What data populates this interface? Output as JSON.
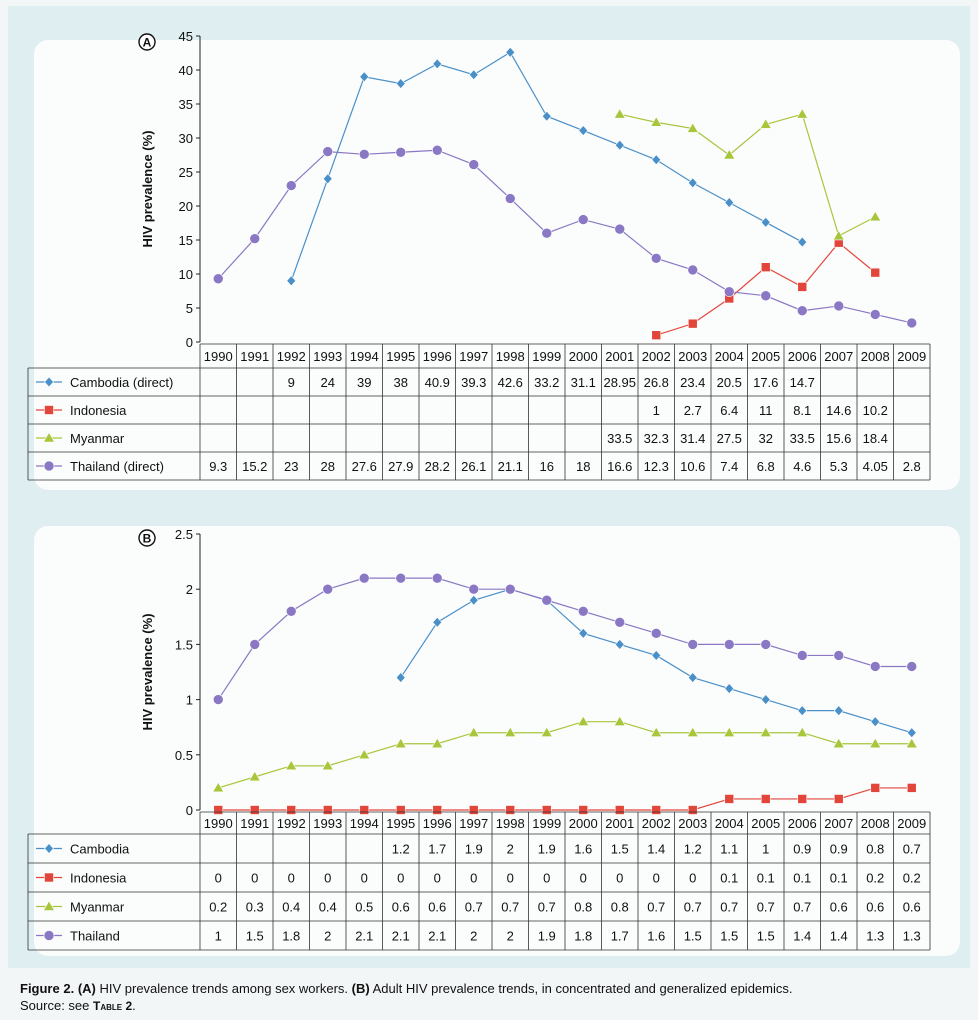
{
  "chart_data": [
    {
      "type": "line",
      "panel_label": "A",
      "ylabel": "HIV prevalence (%)",
      "ylim": [
        0,
        45
      ],
      "yticks": [
        0,
        5,
        10,
        15,
        20,
        25,
        30,
        35,
        40,
        45
      ],
      "categories": [
        "1990",
        "1991",
        "1992",
        "1993",
        "1994",
        "1995",
        "1996",
        "1997",
        "1998",
        "1999",
        "2000",
        "2001",
        "2002",
        "2003",
        "2004",
        "2005",
        "2006",
        "2007",
        "2008",
        "2009"
      ],
      "series": [
        {
          "name": "Cambodia (direct)",
          "color": "#4a90c8",
          "marker": "diamond",
          "values": [
            null,
            null,
            9,
            24,
            39,
            38,
            40.9,
            39.3,
            42.6,
            33.2,
            31.1,
            28.95,
            26.8,
            23.4,
            20.5,
            17.6,
            14.7,
            null,
            null,
            null
          ],
          "labels": [
            "",
            "",
            "9",
            "24",
            "39",
            "38",
            "40.9",
            "39.3",
            "42.6",
            "33.2",
            "31.1",
            "28.95",
            "26.8",
            "23.4",
            "20.5",
            "17.6",
            "14.7",
            "",
            "",
            ""
          ]
        },
        {
          "name": "Indonesia",
          "color": "#e2463b",
          "marker": "square",
          "values": [
            null,
            null,
            null,
            null,
            null,
            null,
            null,
            null,
            null,
            null,
            null,
            null,
            1,
            2.7,
            6.4,
            11,
            8.1,
            14.6,
            10.2,
            null
          ],
          "labels": [
            "",
            "",
            "",
            "",
            "",
            "",
            "",
            "",
            "",
            "",
            "",
            "",
            "1",
            "2.7",
            "6.4",
            "11",
            "8.1",
            "14.6",
            "10.2",
            ""
          ]
        },
        {
          "name": "Myanmar",
          "color": "#a8c63c",
          "marker": "triangle",
          "values": [
            null,
            null,
            null,
            null,
            null,
            null,
            null,
            null,
            null,
            null,
            null,
            33.5,
            32.3,
            31.4,
            27.5,
            32,
            33.5,
            15.6,
            18.4,
            null
          ],
          "labels": [
            "",
            "",
            "",
            "",
            "",
            "",
            "",
            "",
            "",
            "",
            "",
            "33.5",
            "32.3",
            "31.4",
            "27.5",
            "32",
            "33.5",
            "15.6",
            "18.4",
            ""
          ]
        },
        {
          "name": "Thailand (direct)",
          "color": "#8a78c4",
          "marker": "circle",
          "values": [
            9.3,
            15.2,
            23,
            28,
            27.6,
            27.9,
            28.2,
            26.1,
            21.1,
            16,
            18,
            16.6,
            12.3,
            10.6,
            7.4,
            6.8,
            4.6,
            5.3,
            4.05,
            2.8
          ],
          "labels": [
            "9.3",
            "15.2",
            "23",
            "28",
            "27.6",
            "27.9",
            "28.2",
            "26.1",
            "21.1",
            "16",
            "18",
            "16.6",
            "12.3",
            "10.6",
            "7.4",
            "6.8",
            "4.6",
            "5.3",
            "4.05",
            "2.8"
          ]
        }
      ]
    },
    {
      "type": "line",
      "panel_label": "B",
      "ylabel": "HIV prevalence (%)",
      "ylim": [
        0,
        2.5
      ],
      "yticks": [
        0,
        0.5,
        1,
        1.5,
        2,
        2.5
      ],
      "categories": [
        "1990",
        "1991",
        "1992",
        "1993",
        "1994",
        "1995",
        "1996",
        "1997",
        "1998",
        "1999",
        "2000",
        "2001",
        "2002",
        "2003",
        "2004",
        "2005",
        "2006",
        "2007",
        "2008",
        "2009"
      ],
      "series": [
        {
          "name": "Cambodia",
          "color": "#4a90c8",
          "marker": "diamond",
          "values": [
            null,
            null,
            null,
            null,
            null,
            1.2,
            1.7,
            1.9,
            2,
            1.9,
            1.6,
            1.5,
            1.4,
            1.2,
            1.1,
            1,
            0.9,
            0.9,
            0.8,
            0.7
          ],
          "labels": [
            "",
            "",
            "",
            "",
            "",
            "1.2",
            "1.7",
            "1.9",
            "2",
            "1.9",
            "1.6",
            "1.5",
            "1.4",
            "1.2",
            "1.1",
            "1",
            "0.9",
            "0.9",
            "0.8",
            "0.7"
          ]
        },
        {
          "name": "Indonesia",
          "color": "#e2463b",
          "marker": "square",
          "values": [
            0,
            0,
            0,
            0,
            0,
            0,
            0,
            0,
            0,
            0,
            0,
            0,
            0,
            0,
            0.1,
            0.1,
            0.1,
            0.1,
            0.2,
            0.2
          ],
          "labels": [
            "0",
            "0",
            "0",
            "0",
            "0",
            "0",
            "0",
            "0",
            "0",
            "0",
            "0",
            "0",
            "0",
            "0",
            "0.1",
            "0.1",
            "0.1",
            "0.1",
            "0.2",
            "0.2"
          ]
        },
        {
          "name": "Myanmar",
          "color": "#a8c63c",
          "marker": "triangle",
          "values": [
            0.2,
            0.3,
            0.4,
            0.4,
            0.5,
            0.6,
            0.6,
            0.7,
            0.7,
            0.7,
            0.8,
            0.8,
            0.7,
            0.7,
            0.7,
            0.7,
            0.7,
            0.6,
            0.6,
            0.6
          ],
          "labels": [
            "0.2",
            "0.3",
            "0.4",
            "0.4",
            "0.5",
            "0.6",
            "0.6",
            "0.7",
            "0.7",
            "0.7",
            "0.8",
            "0.8",
            "0.7",
            "0.7",
            "0.7",
            "0.7",
            "0.7",
            "0.6",
            "0.6",
            "0.6"
          ]
        },
        {
          "name": "Thailand",
          "color": "#8a78c4",
          "marker": "circle",
          "values": [
            1,
            1.5,
            1.8,
            2,
            2.1,
            2.1,
            2.1,
            2,
            2,
            1.9,
            1.8,
            1.7,
            1.6,
            1.5,
            1.5,
            1.5,
            1.4,
            1.4,
            1.3,
            1.3
          ],
          "labels": [
            "1",
            "1.5",
            "1.8",
            "2",
            "2.1",
            "2.1",
            "2.1",
            "2",
            "2",
            "1.9",
            "1.8",
            "1.7",
            "1.6",
            "1.5",
            "1.5",
            "1.5",
            "1.4",
            "1.4",
            "1.3",
            "1.3"
          ]
        }
      ]
    }
  ],
  "caption": {
    "fig_label": "Figure 2.",
    "a_label": "(A)",
    "a_text": "HIV prevalence trends among sex workers.",
    "b_label": "(B)",
    "b_text": "Adult HIV prevalence trends, in concentrated and generalized epidemics.",
    "source_prefix": "Source: see",
    "source_ref": "Table 2",
    "source_suffix": "."
  }
}
